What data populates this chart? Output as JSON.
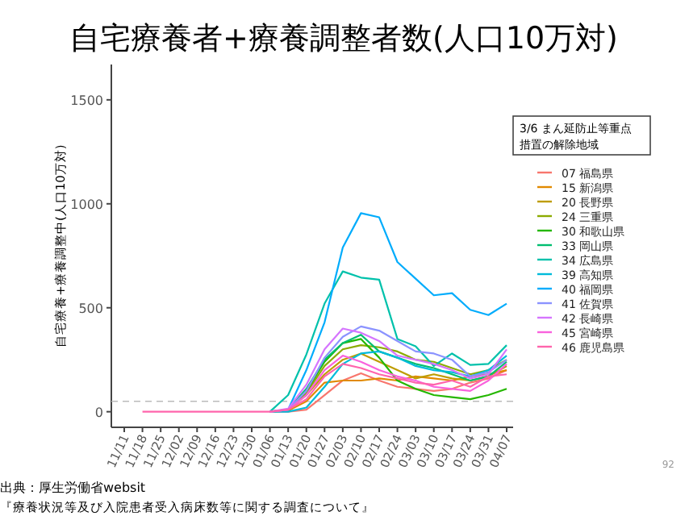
{
  "chart_data": {
    "type": "line",
    "title": "自宅療養者+療養調整者数(人口10万対)",
    "ylabel": "自宅療養+療養調整中(人口10万対)",
    "legend_title": "3/6 まん延防止等重点措置の解除地域",
    "legend": "right",
    "annotations": [
      "出典：厚生労働省websit",
      "『療養状況等及び入院患者受入病床数等に関する調査について』",
      "92"
    ],
    "categories": [
      "11/11",
      "11/18",
      "11/25",
      "12/02",
      "12/09",
      "12/16",
      "12/23",
      "12/30",
      "01/06",
      "01/13",
      "01/20",
      "01/27",
      "02/03",
      "02/10",
      "02/17",
      "02/24",
      "03/03",
      "03/10",
      "03/17",
      "03/24",
      "03/31",
      "04/07"
    ],
    "ylim": [
      -75,
      1670
    ],
    "yticks": [
      0,
      500,
      1000,
      1500
    ],
    "ref_lines": [
      {
        "axis": "y",
        "value": 50,
        "color": "#bbbbbb",
        "line_style": "dashed"
      }
    ],
    "series": [
      {
        "name": "07 福島県",
        "color": "#F8766D",
        "values": [
          null,
          null,
          null,
          null,
          null,
          null,
          null,
          null,
          0,
          0,
          10,
          80,
          150,
          185,
          150,
          120,
          110,
          100,
          110,
          140,
          160,
          200
        ]
      },
      {
        "name": "15 新潟県",
        "color": "#E18A00",
        "values": [
          null,
          null,
          null,
          null,
          null,
          null,
          null,
          null,
          0,
          5,
          50,
          140,
          150,
          150,
          160,
          150,
          170,
          160,
          150,
          170,
          180,
          200
        ]
      },
      {
        "name": "20 長野県",
        "color": "#BE9C00",
        "values": [
          null,
          null,
          null,
          null,
          null,
          null,
          null,
          null,
          0,
          10,
          80,
          180,
          250,
          280,
          240,
          200,
          160,
          180,
          160,
          150,
          170,
          220
        ]
      },
      {
        "name": "24 三重県",
        "color": "#8CAB00",
        "values": [
          null,
          null,
          null,
          null,
          null,
          null,
          null,
          null,
          0,
          10,
          90,
          220,
          300,
          320,
          310,
          290,
          250,
          240,
          210,
          180,
          200,
          250
        ]
      },
      {
        "name": "30 和歌山県",
        "color": "#24B700",
        "values": [
          null,
          null,
          null,
          null,
          null,
          null,
          null,
          null,
          0,
          10,
          100,
          240,
          330,
          350,
          260,
          150,
          110,
          80,
          70,
          60,
          80,
          110
        ]
      },
      {
        "name": "33 岡山県",
        "color": "#00BE70",
        "values": [
          null,
          null,
          null,
          null,
          null,
          null,
          null,
          null,
          0,
          10,
          110,
          250,
          330,
          370,
          290,
          260,
          230,
          210,
          180,
          150,
          170,
          240
        ]
      },
      {
        "name": "34 広島県",
        "color": "#00C1AB",
        "values": [
          null,
          null,
          null,
          null,
          null,
          null,
          null,
          null,
          0,
          80,
          275,
          520,
          675,
          645,
          635,
          350,
          315,
          220,
          280,
          225,
          230,
          320
        ]
      },
      {
        "name": "39 高知県",
        "color": "#00BBDA",
        "values": [
          null,
          null,
          null,
          null,
          null,
          null,
          null,
          null,
          0,
          0,
          20,
          120,
          230,
          280,
          290,
          260,
          220,
          200,
          190,
          170,
          200,
          270
        ]
      },
      {
        "name": "40 福岡県",
        "color": "#00ACFC",
        "values": [
          null,
          null,
          null,
          null,
          null,
          null,
          null,
          null,
          0,
          10,
          200,
          430,
          790,
          955,
          935,
          720,
          640,
          560,
          570,
          490,
          465,
          520
        ]
      },
      {
        "name": "41 佐賀県",
        "color": "#8B93FF",
        "values": [
          null,
          null,
          null,
          null,
          null,
          null,
          null,
          null,
          0,
          10,
          100,
          260,
          360,
          410,
          390,
          340,
          290,
          280,
          250,
          170,
          190,
          250
        ]
      },
      {
        "name": "42 長崎県",
        "color": "#D575FE",
        "values": [
          null,
          null,
          null,
          null,
          null,
          null,
          null,
          null,
          0,
          15,
          130,
          300,
          400,
          380,
          340,
          270,
          250,
          230,
          200,
          160,
          180,
          300
        ]
      },
      {
        "name": "45 宮崎県",
        "color": "#F962DD",
        "values": [
          null,
          null,
          null,
          null,
          null,
          null,
          null,
          null,
          0,
          10,
          80,
          200,
          270,
          240,
          200,
          170,
          150,
          120,
          110,
          100,
          150,
          230
        ]
      },
      {
        "name": "46 鹿児島県",
        "color": "#FF65AC",
        "values": [
          null,
          0,
          0,
          0,
          0,
          0,
          0,
          0,
          0,
          10,
          60,
          170,
          230,
          210,
          180,
          160,
          140,
          130,
          150,
          120,
          170,
          180
        ]
      }
    ]
  }
}
